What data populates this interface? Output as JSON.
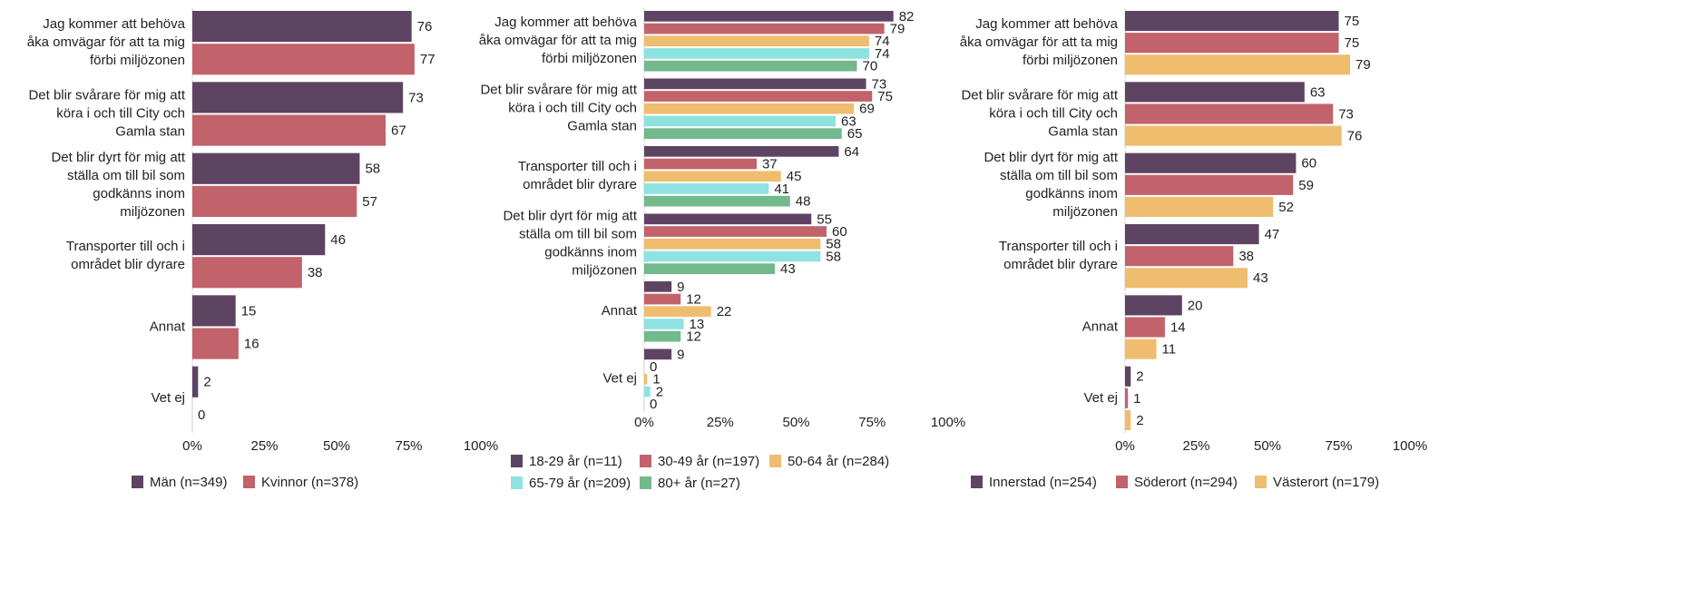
{
  "chart_data": [
    {
      "type": "bar",
      "orientation": "horizontal",
      "categories": [
        [
          "Jag kommer att behöva",
          "åka omvägar för att ta mig",
          "förbi miljözonen"
        ],
        [
          "Det blir svårare för mig att",
          "köra i och till City och",
          "Gamla stan"
        ],
        [
          "Det blir dyrt för mig att",
          "ställa om till bil som",
          "godkänns inom",
          "miljözonen"
        ],
        [
          "Transporter till och i",
          "området blir dyrare"
        ],
        [
          "Annat"
        ],
        [
          "Vet ej"
        ]
      ],
      "series": [
        {
          "name": "Män (n=349)",
          "color": "#5e4463",
          "values": [
            76,
            73,
            58,
            46,
            15,
            2
          ]
        },
        {
          "name": "Kvinnor (n=378)",
          "color": "#c2626a",
          "values": [
            77,
            67,
            57,
            38,
            16,
            0
          ]
        }
      ],
      "xlim": [
        0,
        100
      ],
      "xticks": [
        {
          "value": 0,
          "label": "0%"
        },
        {
          "value": 25,
          "label": "25%"
        },
        {
          "value": 50,
          "label": "50%"
        },
        {
          "value": 75,
          "label": "75%"
        },
        {
          "value": 100,
          "label": "100%"
        }
      ]
    },
    {
      "type": "bar",
      "orientation": "horizontal",
      "categories": [
        [
          "Jag kommer att behöva",
          "åka omvägar för att ta mig",
          "förbi miljözonen"
        ],
        [
          "Det blir svårare för mig att",
          "köra i och till City och",
          "Gamla stan"
        ],
        [
          "Transporter till och i",
          "området blir dyrare"
        ],
        [
          "Det blir dyrt för mig att",
          "ställa om till bil som",
          "godkänns inom",
          "miljözonen"
        ],
        [
          "Annat"
        ],
        [
          "Vet ej"
        ]
      ],
      "series": [
        {
          "name": "18-29 år (n=11)",
          "color": "#5e4463",
          "values": [
            82,
            73,
            64,
            55,
            9,
            9
          ]
        },
        {
          "name": "30-49 år (n=197)",
          "color": "#c2626a",
          "values": [
            79,
            75,
            37,
            60,
            12,
            0
          ]
        },
        {
          "name": "50-64 år (n=284)",
          "color": "#efbd6e",
          "values": [
            74,
            69,
            45,
            58,
            22,
            1
          ]
        },
        {
          "name": "65-79 år (n=209)",
          "color": "#8ee3e0",
          "values": [
            74,
            63,
            41,
            58,
            13,
            2
          ]
        },
        {
          "name": "80+ år (n=27)",
          "color": "#72b98c",
          "values": [
            70,
            65,
            48,
            43,
            12,
            0
          ]
        }
      ],
      "xlim": [
        0,
        100
      ],
      "xticks": [
        {
          "value": 0,
          "label": "0%"
        },
        {
          "value": 25,
          "label": "25%"
        },
        {
          "value": 50,
          "label": "50%"
        },
        {
          "value": 75,
          "label": "75%"
        },
        {
          "value": 100,
          "label": "100%"
        }
      ]
    },
    {
      "type": "bar",
      "orientation": "horizontal",
      "categories": [
        [
          "Jag kommer att behöva",
          "åka omvägar för att ta mig",
          "förbi miljözonen"
        ],
        [
          "Det blir svårare för mig att",
          "köra i och till City och",
          "Gamla stan"
        ],
        [
          "Det blir dyrt för mig att",
          "ställa om till bil som",
          "godkänns inom",
          "miljözonen"
        ],
        [
          "Transporter till och i",
          "området blir dyrare"
        ],
        [
          "Annat"
        ],
        [
          "Vet ej"
        ]
      ],
      "series": [
        {
          "name": "Innerstad (n=254)",
          "color": "#5e4463",
          "values": [
            75,
            63,
            60,
            47,
            20,
            2
          ]
        },
        {
          "name": "Söderort (n=294)",
          "color": "#c2626a",
          "values": [
            75,
            73,
            59,
            38,
            14,
            1
          ]
        },
        {
          "name": "Västerort (n=179)",
          "color": "#efbd6e",
          "values": [
            79,
            76,
            52,
            43,
            11,
            2
          ]
        }
      ],
      "xlim": [
        0,
        100
      ],
      "xticks": [
        {
          "value": 0,
          "label": "0%"
        },
        {
          "value": 25,
          "label": "25%"
        },
        {
          "value": 50,
          "label": "50%"
        },
        {
          "value": 75,
          "label": "75%"
        },
        {
          "value": 100,
          "label": "100%"
        }
      ]
    }
  ]
}
